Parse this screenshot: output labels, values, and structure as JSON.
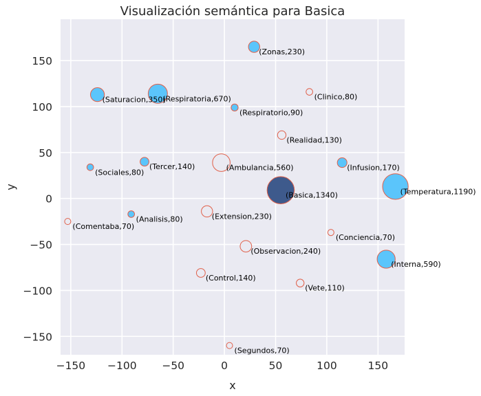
{
  "chart_data": {
    "type": "scatter",
    "title": "Visualización semántica para Basica",
    "xlabel": "x",
    "ylabel": "y",
    "xlim": [
      -160,
      176
    ],
    "ylim": [
      -170,
      195
    ],
    "x_ticks": [
      -150,
      -100,
      -50,
      0,
      50,
      100,
      150
    ],
    "y_ticks": [
      -150,
      -100,
      -50,
      0,
      50,
      100,
      150
    ],
    "x_tick_labels": [
      "−150",
      "−100",
      "−50",
      "0",
      "50",
      "100",
      "150"
    ],
    "y_tick_labels": [
      "−150",
      "−100",
      "−50",
      "0",
      "50",
      "100",
      "150"
    ],
    "grid": true,
    "colors": {
      "background": "#eaeaf2",
      "grid": "#ffffff",
      "fill_blue": "#5bc5fb",
      "fill_focus": "#3e5a8c",
      "edge": "#e0604a",
      "hollow_fill": "#eaeaf2"
    },
    "points": [
      {
        "word": "Zonas",
        "value": 230,
        "x": 29,
        "y": 165,
        "style": "blue",
        "label": "(Zonas,230)"
      },
      {
        "word": "Saturacion",
        "value": 350,
        "x": -124,
        "y": 113,
        "style": "blue",
        "label": "(Saturacion,350)"
      },
      {
        "word": "Respiratoria",
        "value": 670,
        "x": -65,
        "y": 114,
        "style": "blue",
        "label": "(Respiratoria,670)"
      },
      {
        "word": "Clinico",
        "value": 80,
        "x": 83,
        "y": 116,
        "style": "hollow",
        "label": "(Clinico,80)"
      },
      {
        "word": "Respiratorio",
        "value": 90,
        "x": 10,
        "y": 99,
        "style": "blue",
        "label": "(Respiratorio,90)"
      },
      {
        "word": "Realidad",
        "value": 130,
        "x": 56,
        "y": 69,
        "style": "hollow",
        "label": "(Realidad,130)"
      },
      {
        "word": "Tercer",
        "value": 140,
        "x": -78,
        "y": 40,
        "style": "blue",
        "label": "(Tercer,140)"
      },
      {
        "word": "Ambulancia",
        "value": 560,
        "x": -3,
        "y": 39,
        "style": "hollow",
        "label": "(Ambulancia,560)"
      },
      {
        "word": "Infusion",
        "value": 170,
        "x": 115,
        "y": 39,
        "style": "blue",
        "label": "(Infusion,170)"
      },
      {
        "word": "Sociales",
        "value": 80,
        "x": -131,
        "y": 34,
        "style": "blue",
        "label": "(Sociales,80)"
      },
      {
        "word": "Basica",
        "value": 1340,
        "x": 55,
        "y": 9,
        "style": "focus",
        "label": "(Basica,1340)"
      },
      {
        "word": "Temperatura",
        "value": 1190,
        "x": 167,
        "y": 13,
        "style": "blue",
        "label": "(Temperatura,1190)"
      },
      {
        "word": "Extension",
        "value": 230,
        "x": -17,
        "y": -14,
        "style": "hollow",
        "label": "(Extension,230)"
      },
      {
        "word": "Analisis",
        "value": 80,
        "x": -91,
        "y": -17,
        "style": "blue",
        "label": "(Analisis,80)"
      },
      {
        "word": "Comentaba",
        "value": 70,
        "x": -153,
        "y": -25,
        "style": "hollow",
        "label": "(Comentaba,70)"
      },
      {
        "word": "Conciencia",
        "value": 70,
        "x": 104,
        "y": -37,
        "style": "hollow",
        "label": "(Conciencia,70)"
      },
      {
        "word": "Observacion",
        "value": 240,
        "x": 21,
        "y": -52,
        "style": "hollow",
        "label": "(Observacion,240)"
      },
      {
        "word": "Interna",
        "value": 590,
        "x": 158,
        "y": -66,
        "style": "blue",
        "label": "(Interna,590)"
      },
      {
        "word": "Control",
        "value": 140,
        "x": -23,
        "y": -81,
        "style": "hollow",
        "label": "(Control,140)"
      },
      {
        "word": "Vete",
        "value": 110,
        "x": 74,
        "y": -92,
        "style": "hollow",
        "label": "(Vete,110)"
      },
      {
        "word": "Segundos",
        "value": 70,
        "x": 5,
        "y": -160,
        "style": "hollow",
        "label": "(Segundos,70)"
      }
    ]
  }
}
